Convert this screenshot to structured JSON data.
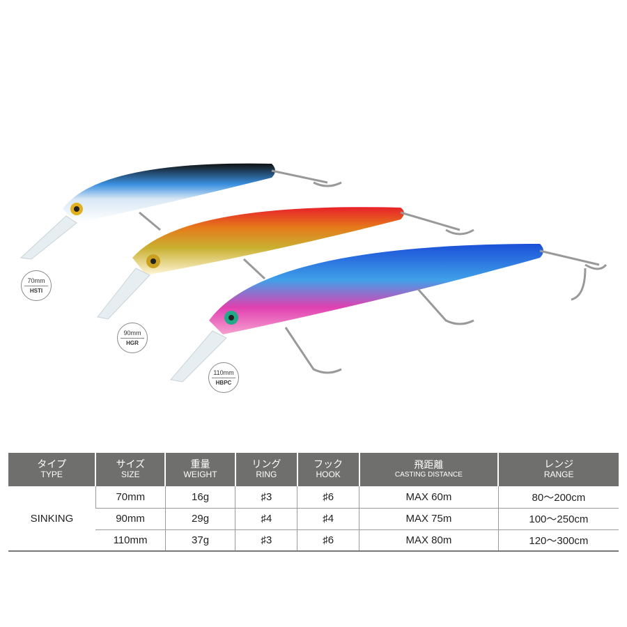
{
  "lures": [
    {
      "size": "70mm",
      "code": "HSTI"
    },
    {
      "size": "90mm",
      "code": "HGR"
    },
    {
      "size": "110mm",
      "code": "HBPC"
    }
  ],
  "table": {
    "headers": [
      {
        "jp": "タイプ",
        "en": "TYPE"
      },
      {
        "jp": "サイズ",
        "en": "SIZE"
      },
      {
        "jp": "重量",
        "en": "WEIGHT"
      },
      {
        "jp": "リング",
        "en": "RING"
      },
      {
        "jp": "フック",
        "en": "HOOK"
      },
      {
        "jp": "飛距離",
        "en": "CASTING DISTANCE"
      },
      {
        "jp": "レンジ",
        "en": "RANGE"
      }
    ],
    "type": "SINKING",
    "rows": [
      [
        "70mm",
        "16g",
        "♯3",
        "♯6",
        "MAX 60m",
        "80～200cm"
      ],
      [
        "90mm",
        "29g",
        "♯4",
        "♯4",
        "MAX 75m",
        "100～250cm"
      ],
      [
        "110mm",
        "37g",
        "♯3",
        "♯6",
        "MAX 80m",
        "120～300cm"
      ]
    ]
  }
}
